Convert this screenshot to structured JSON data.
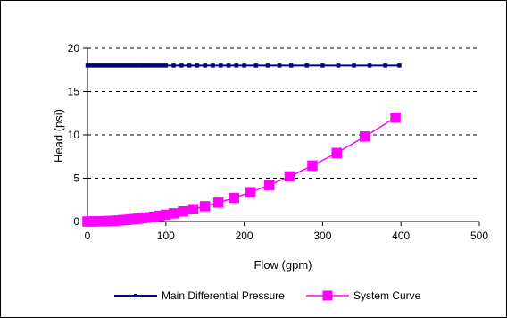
{
  "chart_data": {
    "type": "line",
    "title": "",
    "xlabel": "Flow (gpm)",
    "ylabel": "Head (psi)",
    "xlim": [
      0,
      500
    ],
    "ylim": [
      0,
      20
    ],
    "x_ticks": [
      0,
      100,
      200,
      300,
      400,
      500
    ],
    "y_ticks": [
      0,
      5,
      10,
      15,
      20
    ],
    "grid": "horizontal dashed",
    "legend": "bottom",
    "series": [
      {
        "name": "Main Differential Pressure",
        "color": "#000080",
        "marker": "square-small",
        "x": [
          0,
          4,
          8,
          12,
          16,
          20,
          24,
          28,
          32,
          36,
          40,
          44,
          48,
          52,
          56,
          60,
          64,
          68,
          72,
          76,
          80,
          85,
          90,
          95,
          100,
          110,
          120,
          130,
          140,
          150,
          160,
          170,
          180,
          190,
          200,
          215,
          230,
          245,
          260,
          280,
          300,
          320,
          340,
          360,
          380,
          398
        ],
        "y": [
          18,
          18,
          18,
          18,
          18,
          18,
          18,
          18,
          18,
          18,
          18,
          18,
          18,
          18,
          18,
          18,
          18,
          18,
          18,
          18,
          18,
          18,
          18,
          18,
          18,
          18,
          18,
          18,
          18,
          18,
          18,
          18,
          18,
          18,
          18,
          18,
          18,
          18,
          18,
          18,
          18,
          18,
          18,
          18,
          18,
          18
        ]
      },
      {
        "name": "System Curve",
        "color": "#FF00FF",
        "marker": "square",
        "x": [
          0,
          5,
          10,
          15,
          20,
          25,
          30,
          35,
          40,
          45,
          50,
          55,
          60,
          65,
          70,
          75,
          80,
          85,
          92,
          100,
          110,
          122,
          135,
          150,
          167,
          187,
          208,
          232,
          258,
          287,
          318,
          354,
          393
        ],
        "y": [
          0.0,
          0.0,
          0.01,
          0.02,
          0.03,
          0.05,
          0.07,
          0.09,
          0.12,
          0.16,
          0.19,
          0.24,
          0.28,
          0.33,
          0.38,
          0.44,
          0.5,
          0.56,
          0.66,
          0.78,
          0.94,
          1.16,
          1.42,
          1.76,
          2.18,
          2.73,
          3.38,
          4.21,
          5.21,
          6.45,
          7.91,
          9.81,
          12.0
        ]
      }
    ]
  }
}
